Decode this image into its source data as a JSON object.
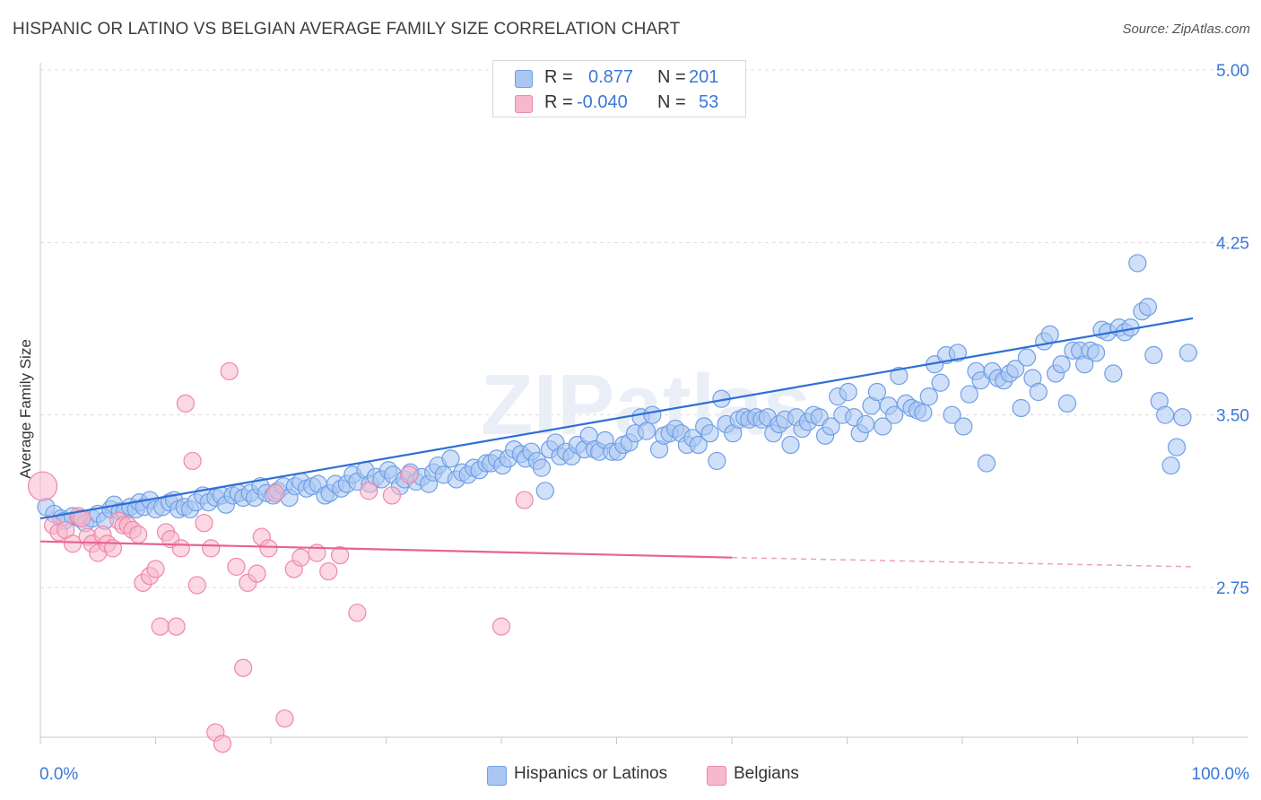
{
  "title": "HISPANIC OR LATINO VS BELGIAN AVERAGE FAMILY SIZE CORRELATION CHART",
  "source": "Source: ZipAtlas.com",
  "watermark": "ZIPatlas",
  "legend": {
    "rows": [
      {
        "r_label": "R =",
        "r_value": "0.877",
        "n_label": "N =",
        "n_value": "201",
        "color": "#a9c6f2",
        "border": "#6f9fe6"
      },
      {
        "r_label": "R =",
        "r_value": "-0.040",
        "n_label": "N =",
        "n_value": "53",
        "color": "#f7b8cc",
        "border": "#ee88a8"
      }
    ]
  },
  "bottom_legend": [
    {
      "label": "Hispanics or Latinos",
      "color": "#a9c6f2",
      "border": "#6f9fe6"
    },
    {
      "label": "Belgians",
      "color": "#f7b8cc",
      "border": "#ee88a8"
    }
  ],
  "chart_data": {
    "type": "scatter",
    "title": "HISPANIC OR LATINO VS BELGIAN AVERAGE FAMILY SIZE CORRELATION CHART",
    "xlabel": "",
    "ylabel": "Average Family Size",
    "xlim": [
      0,
      100
    ],
    "ylim": [
      2.0,
      5.1
    ],
    "x_tick_labels": [
      "0.0%",
      "100.0%"
    ],
    "y_ticks": [
      2.75,
      3.5,
      4.25,
      5.0
    ],
    "y_tick_labels": [
      "2.75",
      "3.50",
      "4.25",
      "5.00"
    ],
    "grid": true,
    "legend_position": "top-center",
    "series": [
      {
        "name": "Hispanics or Latinos",
        "color": "#6f9fe6",
        "fill": "#a9c6f2",
        "trend": {
          "x0": 0,
          "y0": 3.05,
          "x1": 100,
          "y1": 3.92
        },
        "points": [
          [
            0.5,
            3.1
          ],
          [
            1.2,
            3.07
          ],
          [
            1.8,
            3.05
          ],
          [
            2.1,
            3.04
          ],
          [
            2.8,
            3.06
          ],
          [
            3.4,
            3.05
          ],
          [
            3.9,
            3.03
          ],
          [
            4.5,
            3.05
          ],
          [
            5.0,
            3.07
          ],
          [
            5.6,
            3.04
          ],
          [
            6.1,
            3.09
          ],
          [
            6.4,
            3.11
          ],
          [
            6.9,
            3.08
          ],
          [
            7.3,
            3.08
          ],
          [
            7.8,
            3.1
          ],
          [
            8.3,
            3.09
          ],
          [
            8.6,
            3.12
          ],
          [
            9.0,
            3.1
          ],
          [
            9.5,
            3.13
          ],
          [
            10.0,
            3.09
          ],
          [
            10.6,
            3.1
          ],
          [
            11.2,
            3.12
          ],
          [
            11.6,
            3.13
          ],
          [
            12.0,
            3.09
          ],
          [
            12.5,
            3.1
          ],
          [
            13.0,
            3.09
          ],
          [
            13.5,
            3.12
          ],
          [
            14.1,
            3.15
          ],
          [
            14.6,
            3.12
          ],
          [
            15.2,
            3.14
          ],
          [
            15.7,
            3.15
          ],
          [
            16.1,
            3.11
          ],
          [
            16.7,
            3.15
          ],
          [
            17.2,
            3.16
          ],
          [
            17.6,
            3.14
          ],
          [
            18.2,
            3.16
          ],
          [
            18.6,
            3.14
          ],
          [
            19.1,
            3.19
          ],
          [
            19.6,
            3.16
          ],
          [
            20.2,
            3.15
          ],
          [
            20.6,
            3.17
          ],
          [
            21.1,
            3.19
          ],
          [
            21.6,
            3.14
          ],
          [
            22.1,
            3.19
          ],
          [
            22.6,
            3.21
          ],
          [
            23.1,
            3.18
          ],
          [
            23.6,
            3.19
          ],
          [
            24.1,
            3.2
          ],
          [
            24.7,
            3.15
          ],
          [
            25.1,
            3.16
          ],
          [
            25.6,
            3.2
          ],
          [
            26.1,
            3.18
          ],
          [
            26.6,
            3.2
          ],
          [
            27.1,
            3.24
          ],
          [
            27.5,
            3.21
          ],
          [
            28.2,
            3.26
          ],
          [
            28.6,
            3.2
          ],
          [
            29.1,
            3.23
          ],
          [
            29.6,
            3.22
          ],
          [
            30.2,
            3.26
          ],
          [
            30.6,
            3.24
          ],
          [
            31.2,
            3.19
          ],
          [
            31.6,
            3.22
          ],
          [
            32.1,
            3.25
          ],
          [
            32.6,
            3.21
          ],
          [
            33.1,
            3.23
          ],
          [
            33.7,
            3.2
          ],
          [
            34.1,
            3.25
          ],
          [
            34.5,
            3.28
          ],
          [
            35.0,
            3.24
          ],
          [
            35.6,
            3.31
          ],
          [
            36.1,
            3.22
          ],
          [
            36.6,
            3.25
          ],
          [
            37.1,
            3.24
          ],
          [
            37.6,
            3.27
          ],
          [
            38.1,
            3.26
          ],
          [
            38.7,
            3.29
          ],
          [
            39.1,
            3.29
          ],
          [
            39.6,
            3.31
          ],
          [
            40.1,
            3.28
          ],
          [
            40.6,
            3.31
          ],
          [
            41.1,
            3.35
          ],
          [
            41.7,
            3.33
          ],
          [
            42.1,
            3.31
          ],
          [
            42.6,
            3.34
          ],
          [
            43.1,
            3.3
          ],
          [
            43.5,
            3.27
          ],
          [
            43.8,
            3.17
          ],
          [
            44.2,
            3.35
          ],
          [
            44.7,
            3.38
          ],
          [
            45.1,
            3.32
          ],
          [
            45.6,
            3.34
          ],
          [
            46.1,
            3.32
          ],
          [
            46.6,
            3.37
          ],
          [
            47.2,
            3.35
          ],
          [
            47.6,
            3.41
          ],
          [
            48.1,
            3.35
          ],
          [
            48.5,
            3.34
          ],
          [
            49.0,
            3.39
          ],
          [
            49.6,
            3.34
          ],
          [
            50.1,
            3.34
          ],
          [
            50.6,
            3.37
          ],
          [
            51.1,
            3.38
          ],
          [
            51.6,
            3.42
          ],
          [
            52.1,
            3.49
          ],
          [
            52.6,
            3.43
          ],
          [
            53.1,
            3.5
          ],
          [
            53.7,
            3.35
          ],
          [
            54.1,
            3.41
          ],
          [
            54.6,
            3.42
          ],
          [
            55.1,
            3.44
          ],
          [
            55.6,
            3.42
          ],
          [
            56.1,
            3.37
          ],
          [
            56.6,
            3.4
          ],
          [
            57.1,
            3.37
          ],
          [
            57.6,
            3.45
          ],
          [
            58.1,
            3.42
          ],
          [
            58.7,
            3.3
          ],
          [
            59.1,
            3.57
          ],
          [
            59.5,
            3.46
          ],
          [
            60.1,
            3.42
          ],
          [
            60.6,
            3.48
          ],
          [
            61.1,
            3.49
          ],
          [
            61.5,
            3.48
          ],
          [
            62.1,
            3.49
          ],
          [
            62.6,
            3.48
          ],
          [
            63.1,
            3.49
          ],
          [
            63.6,
            3.42
          ],
          [
            64.1,
            3.46
          ],
          [
            64.6,
            3.48
          ],
          [
            65.1,
            3.37
          ],
          [
            65.6,
            3.49
          ],
          [
            66.1,
            3.44
          ],
          [
            66.6,
            3.47
          ],
          [
            67.1,
            3.5
          ],
          [
            67.6,
            3.49
          ],
          [
            68.1,
            3.41
          ],
          [
            68.6,
            3.45
          ],
          [
            69.2,
            3.58
          ],
          [
            69.6,
            3.5
          ],
          [
            70.1,
            3.6
          ],
          [
            70.6,
            3.49
          ],
          [
            71.1,
            3.42
          ],
          [
            71.6,
            3.46
          ],
          [
            72.1,
            3.54
          ],
          [
            72.6,
            3.6
          ],
          [
            73.1,
            3.45
          ],
          [
            73.6,
            3.54
          ],
          [
            74.1,
            3.5
          ],
          [
            74.5,
            3.67
          ],
          [
            75.1,
            3.55
          ],
          [
            75.6,
            3.53
          ],
          [
            76.1,
            3.52
          ],
          [
            76.6,
            3.51
          ],
          [
            77.1,
            3.58
          ],
          [
            77.6,
            3.72
          ],
          [
            78.1,
            3.64
          ],
          [
            78.6,
            3.76
          ],
          [
            79.1,
            3.5
          ],
          [
            79.6,
            3.77
          ],
          [
            80.1,
            3.45
          ],
          [
            80.6,
            3.59
          ],
          [
            81.2,
            3.69
          ],
          [
            81.6,
            3.65
          ],
          [
            82.1,
            3.29
          ],
          [
            82.6,
            3.69
          ],
          [
            83.1,
            3.66
          ],
          [
            83.6,
            3.65
          ],
          [
            84.1,
            3.68
          ],
          [
            84.6,
            3.7
          ],
          [
            85.1,
            3.53
          ],
          [
            85.6,
            3.75
          ],
          [
            86.1,
            3.66
          ],
          [
            86.6,
            3.6
          ],
          [
            87.1,
            3.82
          ],
          [
            87.6,
            3.85
          ],
          [
            88.1,
            3.68
          ],
          [
            88.6,
            3.72
          ],
          [
            89.1,
            3.55
          ],
          [
            89.6,
            3.78
          ],
          [
            90.2,
            3.78
          ],
          [
            90.6,
            3.72
          ],
          [
            91.1,
            3.78
          ],
          [
            91.6,
            3.77
          ],
          [
            92.1,
            3.87
          ],
          [
            92.6,
            3.86
          ],
          [
            93.1,
            3.68
          ],
          [
            93.6,
            3.88
          ],
          [
            94.1,
            3.86
          ],
          [
            94.6,
            3.88
          ],
          [
            95.2,
            4.16
          ],
          [
            95.6,
            3.95
          ],
          [
            96.1,
            3.97
          ],
          [
            96.6,
            3.76
          ],
          [
            97.1,
            3.56
          ],
          [
            97.6,
            3.5
          ],
          [
            98.1,
            3.28
          ],
          [
            98.6,
            3.36
          ],
          [
            99.1,
            3.49
          ],
          [
            99.6,
            3.77
          ]
        ]
      },
      {
        "name": "Belgians",
        "color": "#ee88a8",
        "fill": "#f7b8cc",
        "trend": {
          "x0": 0,
          "y0": 2.95,
          "x1": 60,
          "y1": 2.88,
          "dashed_to_x": 100,
          "dashed_to_y": 2.84
        },
        "points": [
          [
            0.2,
            3.19
          ],
          [
            1.1,
            3.02
          ],
          [
            1.6,
            2.99
          ],
          [
            2.2,
            3.0
          ],
          [
            2.8,
            2.94
          ],
          [
            3.3,
            3.06
          ],
          [
            3.6,
            3.05
          ],
          [
            4.1,
            2.97
          ],
          [
            4.5,
            2.94
          ],
          [
            5.0,
            2.9
          ],
          [
            5.4,
            2.98
          ],
          [
            5.8,
            2.94
          ],
          [
            6.3,
            2.92
          ],
          [
            6.8,
            3.04
          ],
          [
            7.2,
            3.02
          ],
          [
            7.6,
            3.02
          ],
          [
            8.0,
            3.0
          ],
          [
            8.5,
            2.98
          ],
          [
            8.9,
            2.77
          ],
          [
            9.5,
            2.8
          ],
          [
            10.0,
            2.83
          ],
          [
            10.4,
            2.58
          ],
          [
            10.9,
            2.99
          ],
          [
            11.3,
            2.96
          ],
          [
            11.8,
            2.58
          ],
          [
            12.2,
            2.92
          ],
          [
            12.6,
            3.55
          ],
          [
            13.2,
            3.3
          ],
          [
            13.6,
            2.76
          ],
          [
            14.2,
            3.03
          ],
          [
            14.8,
            2.92
          ],
          [
            15.2,
            2.12
          ],
          [
            15.8,
            2.07
          ],
          [
            16.4,
            3.69
          ],
          [
            17.0,
            2.84
          ],
          [
            17.6,
            2.4
          ],
          [
            18.0,
            2.77
          ],
          [
            18.8,
            2.81
          ],
          [
            19.2,
            2.97
          ],
          [
            19.8,
            2.92
          ],
          [
            20.4,
            3.16
          ],
          [
            21.2,
            2.18
          ],
          [
            22.0,
            2.83
          ],
          [
            22.6,
            2.88
          ],
          [
            24.0,
            2.9
          ],
          [
            25.0,
            2.82
          ],
          [
            26.0,
            2.89
          ],
          [
            27.5,
            2.64
          ],
          [
            28.5,
            3.17
          ],
          [
            30.5,
            3.15
          ],
          [
            32.0,
            3.24
          ],
          [
            40.0,
            2.58
          ],
          [
            42.0,
            3.13
          ]
        ]
      }
    ]
  }
}
